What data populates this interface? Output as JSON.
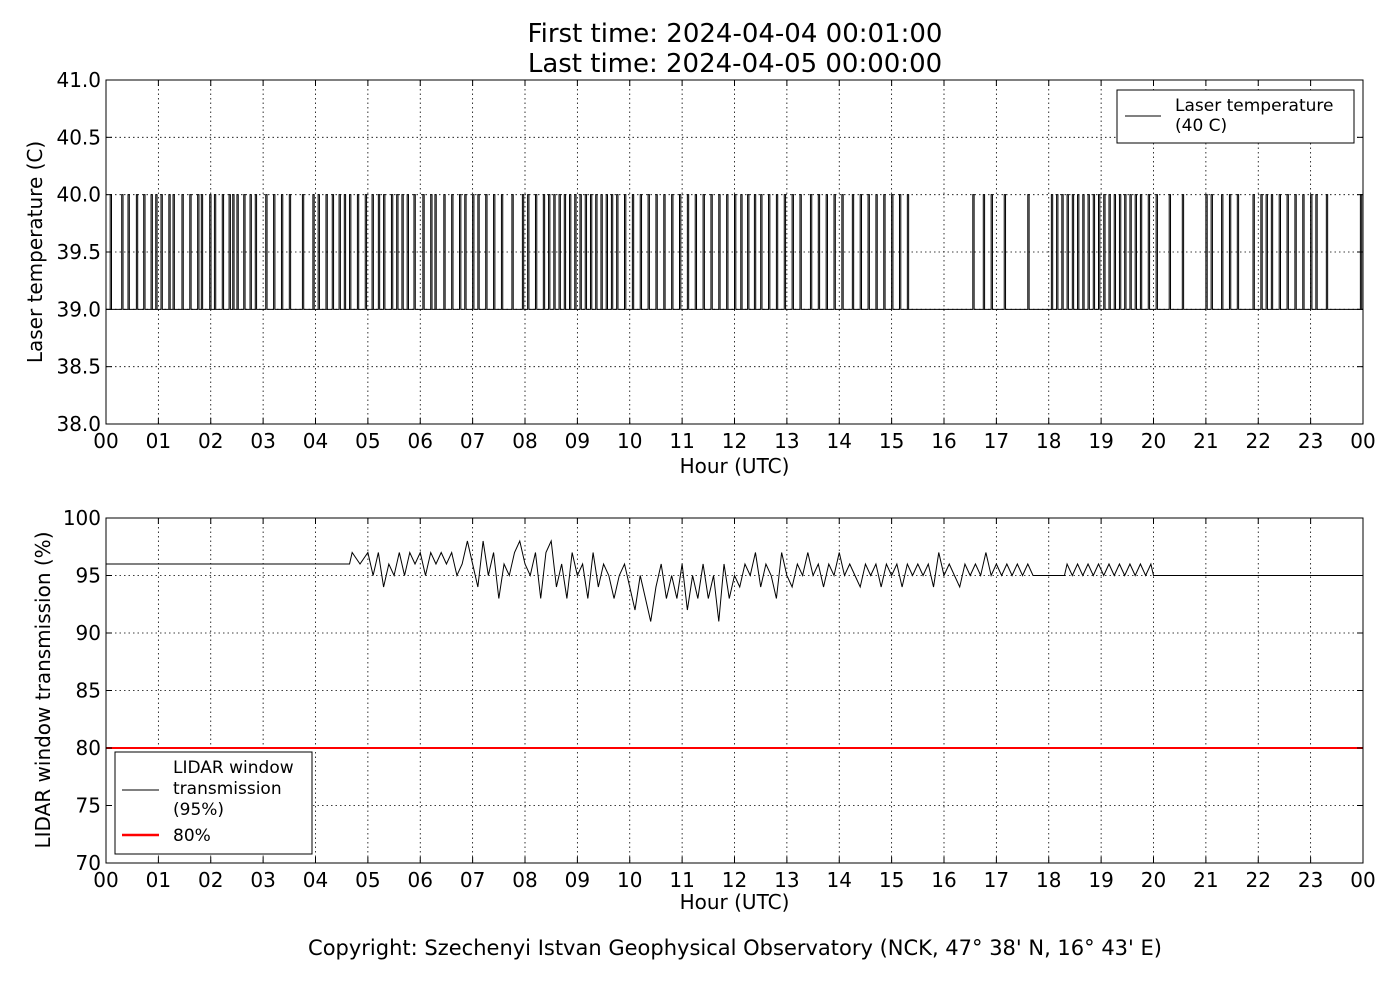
{
  "header": {
    "first_time": "First time: 2024-04-04 00:01:00",
    "last_time": "Last time: 2024-04-05 00:00:00"
  },
  "footer": {
    "copyright": "Copyright: Szechenyi Istvan Geophysical Observatory (NCK, 47° 38' N, 16° 43' E)"
  },
  "colors": {
    "series": "#000000",
    "threshold": "#ff0000",
    "grid": "#000000"
  },
  "chart_data": [
    {
      "type": "line",
      "xlabel": "Hour (UTC)",
      "ylabel": "Laser temperature (C)",
      "xlim": [
        0,
        24
      ],
      "ylim": [
        38.0,
        41.0
      ],
      "x_ticks": [
        "00",
        "01",
        "02",
        "03",
        "04",
        "05",
        "06",
        "07",
        "08",
        "09",
        "10",
        "11",
        "12",
        "13",
        "14",
        "15",
        "16",
        "17",
        "18",
        "19",
        "20",
        "21",
        "22",
        "23",
        "00"
      ],
      "y_ticks": [
        "38.0",
        "38.5",
        "39.0",
        "39.5",
        "40.0",
        "40.5",
        "41.0"
      ],
      "grid": true,
      "legend_position": "top-right",
      "series": [
        {
          "name": "Laser temperature (40 C)",
          "name_lines": [
            "Laser temperature",
            "(40 C)"
          ],
          "baseline": 39.0,
          "pulse_value": 40.0,
          "pulses_at": [
            0.08,
            0.3,
            0.42,
            0.58,
            0.72,
            0.86,
            0.95,
            1.05,
            1.2,
            1.28,
            1.45,
            1.6,
            1.75,
            1.82,
            1.98,
            2.07,
            2.22,
            2.35,
            2.42,
            2.5,
            2.63,
            2.75,
            2.85,
            3.05,
            3.2,
            3.35,
            3.5,
            3.75,
            3.95,
            4.05,
            4.2,
            4.32,
            4.45,
            4.55,
            4.65,
            4.8,
            4.95,
            5.08,
            5.2,
            5.3,
            5.45,
            5.55,
            5.65,
            5.75,
            5.88,
            6.05,
            6.2,
            6.28,
            6.45,
            6.6,
            6.75,
            6.85,
            7.0,
            7.1,
            7.25,
            7.4,
            7.55,
            7.75,
            7.95,
            8.05,
            8.2,
            8.35,
            8.45,
            8.55,
            8.65,
            8.75,
            8.85,
            8.95,
            9.05,
            9.15,
            9.25,
            9.35,
            9.45,
            9.55,
            9.65,
            9.75,
            9.9,
            10.05,
            10.2,
            10.35,
            10.5,
            10.65,
            10.8,
            10.95,
            11.1,
            11.25,
            11.4,
            11.55,
            11.7,
            11.85,
            12.0,
            12.12,
            12.25,
            12.38,
            12.5,
            12.65,
            12.8,
            12.95,
            13.1,
            13.25,
            13.45,
            13.6,
            13.75,
            13.9,
            14.05,
            14.25,
            14.4,
            14.55,
            14.7,
            14.85,
            15.0,
            15.15,
            15.3,
            16.55,
            16.75,
            16.9,
            17.15,
            17.6,
            18.05,
            18.15,
            18.25,
            18.35,
            18.45,
            18.55,
            18.65,
            18.75,
            18.85,
            18.95,
            19.05,
            19.15,
            19.25,
            19.35,
            19.45,
            19.55,
            19.65,
            19.75,
            19.9,
            20.05,
            20.3,
            20.55,
            21.0,
            21.1,
            21.3,
            21.45,
            21.6,
            21.9,
            22.05,
            22.15,
            22.25,
            22.4,
            22.55,
            22.7,
            22.85,
            23.0,
            23.1,
            23.3,
            23.95
          ]
        }
      ]
    },
    {
      "type": "line",
      "xlabel": "Hour (UTC)",
      "ylabel": "LIDAR window transmission (%)",
      "xlim": [
        0,
        24
      ],
      "ylim": [
        70,
        100
      ],
      "x_ticks": [
        "00",
        "01",
        "02",
        "03",
        "04",
        "05",
        "06",
        "07",
        "08",
        "09",
        "10",
        "11",
        "12",
        "13",
        "14",
        "15",
        "16",
        "17",
        "18",
        "19",
        "20",
        "21",
        "22",
        "23",
        "00"
      ],
      "y_ticks": [
        "70",
        "75",
        "80",
        "85",
        "90",
        "95",
        "100"
      ],
      "grid": true,
      "legend_position": "bottom-left",
      "series": [
        {
          "name": "LIDAR window transmission (95%)",
          "name_lines": [
            "LIDAR window",
            "transmission",
            "(95%)"
          ],
          "points": [
            [
              0,
              96
            ],
            [
              4.65,
              96
            ],
            [
              4.7,
              97
            ],
            [
              4.85,
              96
            ],
            [
              5.0,
              97
            ],
            [
              5.1,
              95
            ],
            [
              5.2,
              97
            ],
            [
              5.3,
              94
            ],
            [
              5.4,
              96
            ],
            [
              5.5,
              95
            ],
            [
              5.6,
              97
            ],
            [
              5.7,
              95
            ],
            [
              5.8,
              97
            ],
            [
              5.9,
              96
            ],
            [
              6.0,
              97
            ],
            [
              6.1,
              95
            ],
            [
              6.2,
              97
            ],
            [
              6.3,
              96
            ],
            [
              6.4,
              97
            ],
            [
              6.5,
              96
            ],
            [
              6.6,
              97
            ],
            [
              6.7,
              95
            ],
            [
              6.8,
              96
            ],
            [
              6.9,
              98
            ],
            [
              7.0,
              96
            ],
            [
              7.1,
              94
            ],
            [
              7.2,
              98
            ],
            [
              7.3,
              95
            ],
            [
              7.4,
              97
            ],
            [
              7.5,
              93
            ],
            [
              7.6,
              96
            ],
            [
              7.7,
              95
            ],
            [
              7.8,
              97
            ],
            [
              7.9,
              98
            ],
            [
              8.0,
              96
            ],
            [
              8.1,
              95
            ],
            [
              8.2,
              97
            ],
            [
              8.3,
              93
            ],
            [
              8.4,
              97
            ],
            [
              8.5,
              98
            ],
            [
              8.6,
              94
            ],
            [
              8.7,
              96
            ],
            [
              8.8,
              93
            ],
            [
              8.9,
              97
            ],
            [
              9.0,
              95
            ],
            [
              9.1,
              96
            ],
            [
              9.2,
              93
            ],
            [
              9.3,
              97
            ],
            [
              9.4,
              94
            ],
            [
              9.5,
              96
            ],
            [
              9.6,
              95
            ],
            [
              9.7,
              93
            ],
            [
              9.8,
              95
            ],
            [
              9.9,
              96
            ],
            [
              10.0,
              94
            ],
            [
              10.1,
              92
            ],
            [
              10.2,
              95
            ],
            [
              10.3,
              93
            ],
            [
              10.4,
              91
            ],
            [
              10.5,
              94
            ],
            [
              10.6,
              96
            ],
            [
              10.7,
              93
            ],
            [
              10.8,
              95
            ],
            [
              10.9,
              93
            ],
            [
              11.0,
              96
            ],
            [
              11.1,
              92
            ],
            [
              11.2,
              95
            ],
            [
              11.3,
              93
            ],
            [
              11.4,
              96
            ],
            [
              11.5,
              93
            ],
            [
              11.6,
              95
            ],
            [
              11.7,
              91
            ],
            [
              11.8,
              96
            ],
            [
              11.9,
              93
            ],
            [
              12.0,
              95
            ],
            [
              12.1,
              94
            ],
            [
              12.2,
              96
            ],
            [
              12.3,
              95
            ],
            [
              12.4,
              97
            ],
            [
              12.5,
              94
            ],
            [
              12.6,
              96
            ],
            [
              12.7,
              95
            ],
            [
              12.8,
              93
            ],
            [
              12.9,
              97
            ],
            [
              13.0,
              95
            ],
            [
              13.1,
              94
            ],
            [
              13.2,
              96
            ],
            [
              13.3,
              95
            ],
            [
              13.4,
              97
            ],
            [
              13.5,
              95
            ],
            [
              13.6,
              96
            ],
            [
              13.7,
              94
            ],
            [
              13.8,
              96
            ],
            [
              13.9,
              95
            ],
            [
              14.0,
              97
            ],
            [
              14.1,
              95
            ],
            [
              14.2,
              96
            ],
            [
              14.3,
              95
            ],
            [
              14.4,
              94
            ],
            [
              14.5,
              96
            ],
            [
              14.6,
              95
            ],
            [
              14.7,
              96
            ],
            [
              14.8,
              94
            ],
            [
              14.9,
              96
            ],
            [
              15.0,
              95
            ],
            [
              15.1,
              96
            ],
            [
              15.2,
              94
            ],
            [
              15.3,
              96
            ],
            [
              15.4,
              95
            ],
            [
              15.5,
              96
            ],
            [
              15.6,
              95
            ],
            [
              15.7,
              96
            ],
            [
              15.8,
              94
            ],
            [
              15.9,
              97
            ],
            [
              16.0,
              95
            ],
            [
              16.1,
              96
            ],
            [
              16.2,
              95
            ],
            [
              16.3,
              94
            ],
            [
              16.4,
              96
            ],
            [
              16.5,
              95
            ],
            [
              16.6,
              96
            ],
            [
              16.7,
              95
            ],
            [
              16.8,
              97
            ],
            [
              16.9,
              95
            ],
            [
              17.0,
              96
            ],
            [
              17.1,
              95
            ],
            [
              17.2,
              96
            ],
            [
              17.3,
              95
            ],
            [
              17.4,
              96
            ],
            [
              17.5,
              95
            ],
            [
              17.6,
              96
            ],
            [
              17.7,
              95
            ],
            [
              18.0,
              95
            ],
            [
              18.3,
              95
            ],
            [
              18.35,
              96
            ],
            [
              18.45,
              95
            ],
            [
              18.55,
              96
            ],
            [
              18.65,
              95
            ],
            [
              18.75,
              96
            ],
            [
              18.85,
              95
            ],
            [
              18.95,
              96
            ],
            [
              19.05,
              95
            ],
            [
              19.15,
              96
            ],
            [
              19.25,
              95
            ],
            [
              19.35,
              96
            ],
            [
              19.45,
              95
            ],
            [
              19.55,
              96
            ],
            [
              19.65,
              95
            ],
            [
              19.75,
              96
            ],
            [
              19.85,
              95
            ],
            [
              19.95,
              96
            ],
            [
              20.0,
              95
            ],
            [
              24,
              95
            ]
          ]
        },
        {
          "name": "80%",
          "threshold": 80
        }
      ]
    }
  ]
}
